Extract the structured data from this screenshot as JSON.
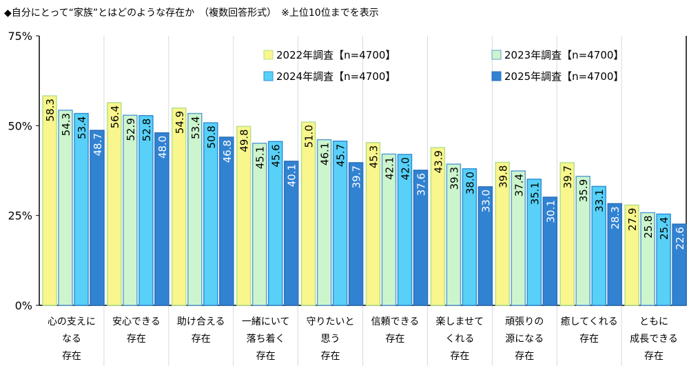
{
  "title": "◆自分にとって“家族”とはどのような存在か　（複数回答形式）　※上位10位までを表示",
  "chart_data": {
    "type": "bar",
    "orientation": "vertical",
    "categories": [
      [
        "心の支えに",
        "なる",
        "存在"
      ],
      [
        "安心できる",
        "存在"
      ],
      [
        "助け合える",
        "存在"
      ],
      [
        "一緒にいて",
        "落ち着く",
        "存在"
      ],
      [
        "守りたいと",
        "思う",
        "存在"
      ],
      [
        "信頼できる",
        "存在"
      ],
      [
        "楽しませて",
        "くれる",
        "存在"
      ],
      [
        "頑張りの",
        "源になる",
        "存在"
      ],
      [
        "癒してくれる",
        "存在"
      ],
      [
        "ともに",
        "成長できる",
        "存在"
      ]
    ],
    "series": [
      {
        "name": "2022年調査【n=4700】",
        "color": "#f8f68c",
        "border": "#b5e08a",
        "label_color": "#000000",
        "values": [
          58.3,
          56.4,
          54.9,
          49.8,
          51.0,
          45.3,
          43.9,
          39.8,
          39.7,
          27.9
        ]
      },
      {
        "name": "2023年調査【n=4700】",
        "color": "#cdf5cd",
        "border": "#5a9fd4",
        "label_color": "#000000",
        "values": [
          54.3,
          52.9,
          53.4,
          45.1,
          46.1,
          42.1,
          39.3,
          37.4,
          35.9,
          25.8
        ]
      },
      {
        "name": "2024年調査【n=4700】",
        "color": "#58d0f7",
        "border": "#2f8fd8",
        "label_color": "#000000",
        "values": [
          53.4,
          52.8,
          50.8,
          45.6,
          45.7,
          42.0,
          38.0,
          35.1,
          33.1,
          25.4
        ]
      },
      {
        "name": "2025年調査【n=4700】",
        "color": "#3282d2",
        "border": "#2a6fb8",
        "label_color": "#ffffff",
        "values": [
          48.7,
          48.0,
          46.8,
          40.1,
          39.7,
          37.6,
          33.0,
          30.1,
          28.3,
          22.6
        ]
      }
    ],
    "y_ticks": [
      "0%",
      "25%",
      "50%",
      "75%"
    ],
    "y_tick_values": [
      0,
      25,
      50,
      75
    ],
    "ylim": [
      0,
      75
    ],
    "grid": "vertical separators between categories",
    "legend_placement": "top-right, inside plot",
    "data_labels": "rotated, inside top of bar"
  }
}
